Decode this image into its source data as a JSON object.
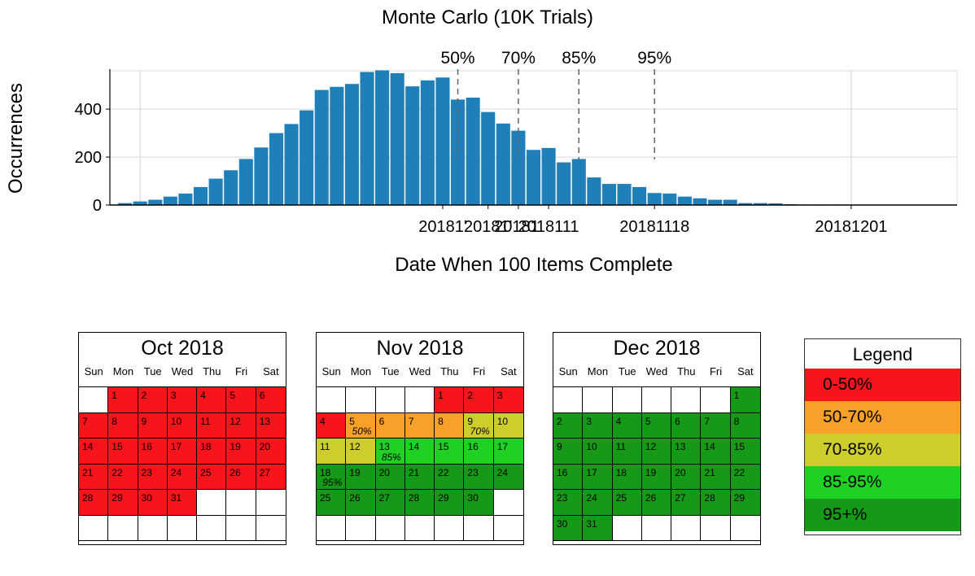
{
  "chart_data": {
    "type": "bar",
    "title": "Monte Carlo (10K Trials)",
    "xlabel": "Date When 100 Items Complete",
    "ylabel": "Occurrences",
    "x_start": "20181013",
    "x_end": "20181208",
    "ylim": [
      0,
      560
    ],
    "yticks": [
      0,
      200,
      400
    ],
    "grid": true,
    "x_gridlines": [
      "20181015",
      "20181101",
      "20181201"
    ],
    "xtick_labels": [
      {
        "date": "20181104",
        "label": "20181'"
      },
      {
        "date": "20181107",
        "label": "20181'"
      },
      {
        "date": "20181109",
        "label": "20181'"
      },
      {
        "date": "20181111",
        "label": "2018111"
      },
      {
        "date": "20181118",
        "label": "20181118"
      },
      {
        "date": "20181201",
        "label": "20181201"
      }
    ],
    "bars": [
      {
        "date": "20181014",
        "value": 8
      },
      {
        "date": "20181015",
        "value": 15
      },
      {
        "date": "20181016",
        "value": 22
      },
      {
        "date": "20181017",
        "value": 35
      },
      {
        "date": "20181018",
        "value": 48
      },
      {
        "date": "20181019",
        "value": 75
      },
      {
        "date": "20181020",
        "value": 110
      },
      {
        "date": "20181021",
        "value": 145
      },
      {
        "date": "20181022",
        "value": 192
      },
      {
        "date": "20181023",
        "value": 240
      },
      {
        "date": "20181024",
        "value": 300
      },
      {
        "date": "20181025",
        "value": 338
      },
      {
        "date": "20181026",
        "value": 395
      },
      {
        "date": "20181027",
        "value": 480
      },
      {
        "date": "20181028",
        "value": 493
      },
      {
        "date": "20181029",
        "value": 505
      },
      {
        "date": "20181030",
        "value": 555
      },
      {
        "date": "20181031",
        "value": 562
      },
      {
        "date": "20181101",
        "value": 550
      },
      {
        "date": "20181102",
        "value": 495
      },
      {
        "date": "20181103",
        "value": 520
      },
      {
        "date": "20181104",
        "value": 532
      },
      {
        "date": "20181105",
        "value": 440
      },
      {
        "date": "20181106",
        "value": 448
      },
      {
        "date": "20181107",
        "value": 388
      },
      {
        "date": "20181108",
        "value": 340
      },
      {
        "date": "20181109",
        "value": 310
      },
      {
        "date": "20181110",
        "value": 230
      },
      {
        "date": "20181111",
        "value": 238
      },
      {
        "date": "20181112",
        "value": 178
      },
      {
        "date": "20181113",
        "value": 192
      },
      {
        "date": "20181114",
        "value": 115
      },
      {
        "date": "20181115",
        "value": 88
      },
      {
        "date": "20181116",
        "value": 88
      },
      {
        "date": "20181117",
        "value": 75
      },
      {
        "date": "20181118",
        "value": 50
      },
      {
        "date": "20181119",
        "value": 48
      },
      {
        "date": "20181120",
        "value": 35
      },
      {
        "date": "20181121",
        "value": 28
      },
      {
        "date": "20181122",
        "value": 22
      },
      {
        "date": "20181123",
        "value": 22
      },
      {
        "date": "20181124",
        "value": 8
      },
      {
        "date": "20181125",
        "value": 8
      },
      {
        "date": "20181126",
        "value": 7
      },
      {
        "date": "20181127",
        "value": 3
      },
      {
        "date": "20181128",
        "value": 2
      },
      {
        "date": "20181129",
        "value": 2
      },
      {
        "date": "20181130",
        "value": 2
      },
      {
        "date": "20181201",
        "value": 1
      },
      {
        "date": "20181202",
        "value": 1
      },
      {
        "date": "20181203",
        "value": 1
      },
      {
        "date": "20181204",
        "value": 1
      },
      {
        "date": "20181205",
        "value": 1
      }
    ],
    "percentiles": [
      {
        "label": "50%",
        "date": "20181105"
      },
      {
        "label": "70%",
        "date": "20181109"
      },
      {
        "label": "85%",
        "date": "20181113"
      },
      {
        "label": "95%",
        "date": "20181118"
      }
    ],
    "bar_color": "#1f7fb8"
  },
  "calendars": [
    {
      "title": "Oct 2018",
      "dows": [
        "Sun",
        "Mon",
        "Tue",
        "Wed",
        "Thu",
        "Fri",
        "Sat"
      ],
      "cells": [
        {
          "n": "",
          "c": "white"
        },
        {
          "n": "1",
          "c": "red"
        },
        {
          "n": "2",
          "c": "red"
        },
        {
          "n": "3",
          "c": "red"
        },
        {
          "n": "4",
          "c": "red"
        },
        {
          "n": "5",
          "c": "red"
        },
        {
          "n": "6",
          "c": "red"
        },
        {
          "n": "7",
          "c": "red"
        },
        {
          "n": "8",
          "c": "red"
        },
        {
          "n": "9",
          "c": "red"
        },
        {
          "n": "10",
          "c": "red"
        },
        {
          "n": "11",
          "c": "red"
        },
        {
          "n": "12",
          "c": "red"
        },
        {
          "n": "13",
          "c": "red"
        },
        {
          "n": "14",
          "c": "red"
        },
        {
          "n": "15",
          "c": "red"
        },
        {
          "n": "16",
          "c": "red"
        },
        {
          "n": "17",
          "c": "red"
        },
        {
          "n": "18",
          "c": "red"
        },
        {
          "n": "19",
          "c": "red"
        },
        {
          "n": "20",
          "c": "red"
        },
        {
          "n": "21",
          "c": "red"
        },
        {
          "n": "22",
          "c": "red"
        },
        {
          "n": "23",
          "c": "red"
        },
        {
          "n": "24",
          "c": "red"
        },
        {
          "n": "25",
          "c": "red"
        },
        {
          "n": "26",
          "c": "red"
        },
        {
          "n": "27",
          "c": "red"
        },
        {
          "n": "28",
          "c": "red"
        },
        {
          "n": "29",
          "c": "red"
        },
        {
          "n": "30",
          "c": "red"
        },
        {
          "n": "31",
          "c": "red"
        },
        {
          "n": "",
          "c": "white"
        },
        {
          "n": "",
          "c": "white"
        },
        {
          "n": "",
          "c": "white"
        },
        {
          "n": "",
          "c": "white"
        },
        {
          "n": "",
          "c": "white"
        },
        {
          "n": "",
          "c": "white"
        },
        {
          "n": "",
          "c": "white"
        },
        {
          "n": "",
          "c": "white"
        },
        {
          "n": "",
          "c": "white"
        },
        {
          "n": "",
          "c": "white"
        }
      ]
    },
    {
      "title": "Nov 2018",
      "dows": [
        "Sun",
        "Mon",
        "Tue",
        "Wed",
        "Thu",
        "Fri",
        "Sat"
      ],
      "cells": [
        {
          "n": "",
          "c": "white"
        },
        {
          "n": "",
          "c": "white"
        },
        {
          "n": "",
          "c": "white"
        },
        {
          "n": "",
          "c": "white"
        },
        {
          "n": "1",
          "c": "red"
        },
        {
          "n": "2",
          "c": "red"
        },
        {
          "n": "3",
          "c": "red"
        },
        {
          "n": "4",
          "c": "red"
        },
        {
          "n": "5",
          "c": "orange",
          "p": "50%"
        },
        {
          "n": "6",
          "c": "orange"
        },
        {
          "n": "7",
          "c": "orange"
        },
        {
          "n": "8",
          "c": "orange"
        },
        {
          "n": "9",
          "c": "yellow",
          "p": "70%"
        },
        {
          "n": "10",
          "c": "yellow"
        },
        {
          "n": "11",
          "c": "yellow"
        },
        {
          "n": "12",
          "c": "yellow"
        },
        {
          "n": "13",
          "c": "lgreen",
          "p": "85%"
        },
        {
          "n": "14",
          "c": "lgreen"
        },
        {
          "n": "15",
          "c": "lgreen"
        },
        {
          "n": "16",
          "c": "lgreen"
        },
        {
          "n": "17",
          "c": "lgreen"
        },
        {
          "n": "18",
          "c": "dgreen",
          "p": "95%"
        },
        {
          "n": "19",
          "c": "dgreen"
        },
        {
          "n": "20",
          "c": "dgreen"
        },
        {
          "n": "21",
          "c": "dgreen"
        },
        {
          "n": "22",
          "c": "dgreen"
        },
        {
          "n": "23",
          "c": "dgreen"
        },
        {
          "n": "24",
          "c": "dgreen"
        },
        {
          "n": "25",
          "c": "dgreen"
        },
        {
          "n": "26",
          "c": "dgreen"
        },
        {
          "n": "27",
          "c": "dgreen"
        },
        {
          "n": "28",
          "c": "dgreen"
        },
        {
          "n": "29",
          "c": "dgreen"
        },
        {
          "n": "30",
          "c": "dgreen"
        },
        {
          "n": "",
          "c": "white"
        },
        {
          "n": "",
          "c": "white"
        },
        {
          "n": "",
          "c": "white"
        },
        {
          "n": "",
          "c": "white"
        },
        {
          "n": "",
          "c": "white"
        },
        {
          "n": "",
          "c": "white"
        },
        {
          "n": "",
          "c": "white"
        },
        {
          "n": "",
          "c": "white"
        }
      ]
    },
    {
      "title": "Dec 2018",
      "dows": [
        "Sun",
        "Mon",
        "Tue",
        "Wed",
        "Thu",
        "Fri",
        "Sat"
      ],
      "cells": [
        {
          "n": "",
          "c": "white"
        },
        {
          "n": "",
          "c": "white"
        },
        {
          "n": "",
          "c": "white"
        },
        {
          "n": "",
          "c": "white"
        },
        {
          "n": "",
          "c": "white"
        },
        {
          "n": "",
          "c": "white"
        },
        {
          "n": "1",
          "c": "dgreen"
        },
        {
          "n": "2",
          "c": "dgreen"
        },
        {
          "n": "3",
          "c": "dgreen"
        },
        {
          "n": "4",
          "c": "dgreen"
        },
        {
          "n": "5",
          "c": "dgreen"
        },
        {
          "n": "6",
          "c": "dgreen"
        },
        {
          "n": "7",
          "c": "dgreen"
        },
        {
          "n": "8",
          "c": "dgreen"
        },
        {
          "n": "9",
          "c": "dgreen"
        },
        {
          "n": "10",
          "c": "dgreen"
        },
        {
          "n": "11",
          "c": "dgreen"
        },
        {
          "n": "12",
          "c": "dgreen"
        },
        {
          "n": "13",
          "c": "dgreen"
        },
        {
          "n": "14",
          "c": "dgreen"
        },
        {
          "n": "15",
          "c": "dgreen"
        },
        {
          "n": "16",
          "c": "dgreen"
        },
        {
          "n": "17",
          "c": "dgreen"
        },
        {
          "n": "18",
          "c": "dgreen"
        },
        {
          "n": "19",
          "c": "dgreen"
        },
        {
          "n": "20",
          "c": "dgreen"
        },
        {
          "n": "21",
          "c": "dgreen"
        },
        {
          "n": "22",
          "c": "dgreen"
        },
        {
          "n": "23",
          "c": "dgreen"
        },
        {
          "n": "24",
          "c": "dgreen"
        },
        {
          "n": "25",
          "c": "dgreen"
        },
        {
          "n": "26",
          "c": "dgreen"
        },
        {
          "n": "27",
          "c": "dgreen"
        },
        {
          "n": "28",
          "c": "dgreen"
        },
        {
          "n": "29",
          "c": "dgreen"
        },
        {
          "n": "30",
          "c": "dgreen"
        },
        {
          "n": "31",
          "c": "dgreen"
        },
        {
          "n": "",
          "c": "white"
        },
        {
          "n": "",
          "c": "white"
        },
        {
          "n": "",
          "c": "white"
        },
        {
          "n": "",
          "c": "white"
        },
        {
          "n": "",
          "c": "white"
        }
      ]
    }
  ],
  "legend": {
    "title": "Legend",
    "items": [
      {
        "label": "0-50%",
        "color": "#f7151b"
      },
      {
        "label": "50-70%",
        "color": "#f8a027"
      },
      {
        "label": "70-85%",
        "color": "#cdce2e"
      },
      {
        "label": "85-95%",
        "color": "#1fd123"
      },
      {
        "label": "95+%",
        "color": "#149a17"
      }
    ]
  }
}
